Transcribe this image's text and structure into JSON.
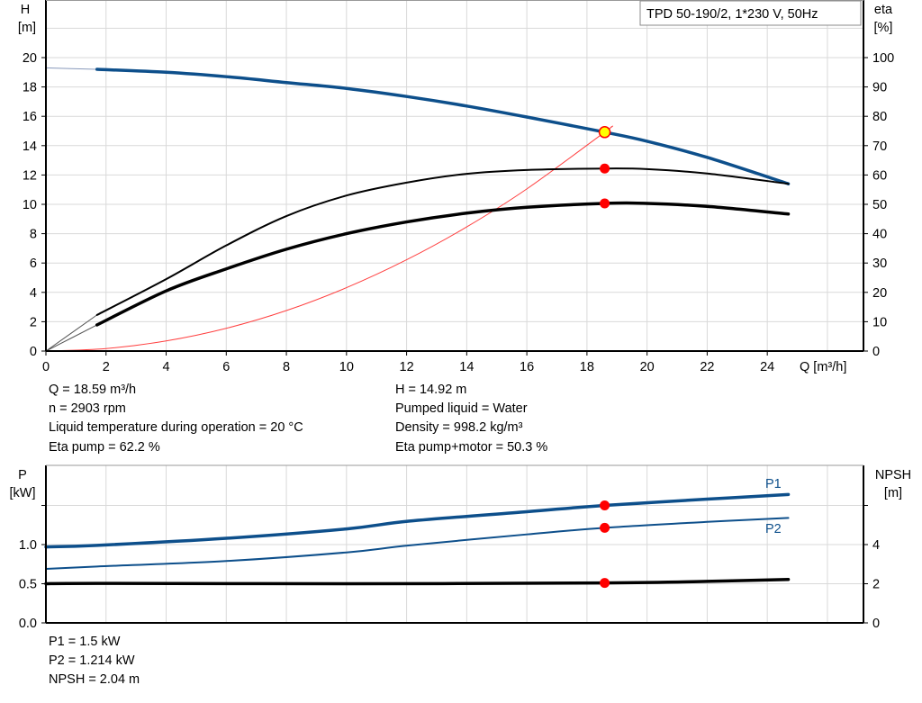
{
  "chart_data": [
    {
      "type": "line",
      "title": "TPD 50-190/2, 1*230 V, 50Hz",
      "xlabel": "Q [m³/h]",
      "ylabel_left": "H",
      "ylabel_left_unit": "[m]",
      "ylabel_right": "eta",
      "ylabel_right_unit": "[%]",
      "xlim": [
        0,
        27.2
      ],
      "ylim_left": [
        0,
        24
      ],
      "ylim_right": [
        0,
        120
      ],
      "x_ticks": [
        "0",
        "2",
        "4",
        "6",
        "8",
        "10",
        "12",
        "14",
        "16",
        "18",
        "20",
        "22",
        "24"
      ],
      "y_left_ticks": [
        "0",
        "2",
        "4",
        "6",
        "8",
        "10",
        "12",
        "14",
        "16",
        "18",
        "20"
      ],
      "y_right_ticks": [
        "0",
        "10",
        "20",
        "30",
        "40",
        "50",
        "60",
        "70",
        "80",
        "90",
        "100"
      ],
      "grid": true,
      "series": [
        {
          "key": "H",
          "axis": "left",
          "color": "#0d4f8b",
          "x": [
            1.7,
            4,
            6,
            8,
            10,
            12,
            14,
            16,
            18.59,
            20,
            22,
            24.7
          ],
          "y": [
            19.2,
            19.0,
            18.7,
            18.3,
            17.9,
            17.35,
            16.7,
            15.95,
            14.92,
            14.3,
            13.2,
            11.4
          ],
          "extrapolated": {
            "x": [
              0,
              1.7
            ],
            "y": [
              19.3,
              19.2
            ]
          }
        },
        {
          "key": "eta_pump",
          "axis": "right",
          "color": "#000000",
          "x": [
            1.7,
            4,
            6,
            8,
            10,
            12,
            14,
            16,
            18.59,
            20,
            22,
            24.7
          ],
          "y": [
            12.3,
            24.5,
            36,
            46,
            53,
            57.4,
            60.4,
            61.7,
            62.2,
            62,
            60.5,
            57
          ]
        },
        {
          "key": "eta_pump_motor",
          "axis": "right",
          "color": "#000000",
          "x": [
            1.7,
            4,
            6,
            8,
            10,
            12,
            14,
            16,
            18.59,
            20,
            22,
            24.7
          ],
          "y": [
            8.9,
            20.5,
            28,
            34.7,
            40,
            44,
            47,
            49,
            50.3,
            50.3,
            49.3,
            46.7
          ]
        },
        {
          "key": "system_curve",
          "axis": "left",
          "color": "#ff4040",
          "formula_points": {
            "x": [
              0,
              2,
              4,
              6,
              8,
              10,
              12,
              14,
              16,
              18.59,
              18.8
            ],
            "y": [
              0,
              0.17,
              0.69,
              1.55,
              2.76,
              4.32,
              6.22,
              8.46,
              11.05,
              14.92,
              15.26
            ]
          }
        }
      ],
      "operating_point": {
        "Q": 18.59,
        "H": 14.92,
        "eta_pump": 62.2,
        "eta_pump_motor": 50.3
      }
    },
    {
      "type": "line",
      "ylabel_left": "P",
      "ylabel_left_unit": "[kW]",
      "ylabel_right": "NPSH",
      "ylabel_right_unit": "[m]",
      "xlim": [
        0,
        27.2
      ],
      "ylim_left": [
        0,
        2.0
      ],
      "ylim_right": [
        0,
        8
      ],
      "y_left_ticks": [
        "0.0",
        "0.5",
        "1.0"
      ],
      "y_right_ticks": [
        "0",
        "2",
        "4"
      ],
      "grid": true,
      "series": [
        {
          "name": "P1",
          "axis": "left",
          "color": "#0d4f8b",
          "x": [
            0,
            1.7,
            6,
            10,
            12.1,
            16,
            18.59,
            22,
            24.7
          ],
          "y": [
            0.97,
            0.99,
            1.08,
            1.2,
            1.3,
            1.42,
            1.5,
            1.58,
            1.64
          ]
        },
        {
          "name": "P2",
          "axis": "left",
          "color": "#0d4f8b",
          "x": [
            0,
            1.7,
            6,
            10,
            12.1,
            16,
            18.59,
            22,
            24.7
          ],
          "y": [
            0.69,
            0.72,
            0.79,
            0.9,
            0.99,
            1.13,
            1.214,
            1.29,
            1.34
          ]
        },
        {
          "key": "NPSH",
          "axis": "right",
          "color": "#000000",
          "x": [
            0,
            1.7,
            10,
            18.59,
            22,
            24.7
          ],
          "y": [
            2.0,
            2.02,
            2.0,
            2.04,
            2.12,
            2.22
          ]
        }
      ],
      "operating_point": {
        "Q": 18.59,
        "P1": 1.5,
        "P2": 1.214,
        "NPSH": 2.04
      }
    }
  ],
  "info_top": {
    "left": [
      "Q = 18.59 m³/h",
      "n = 2903 rpm",
      "Liquid temperature during operation = 20 °C",
      "Eta pump = 62.2 %"
    ],
    "right": [
      "H = 14.92 m",
      "Pumped liquid = Water",
      "Density = 998.2 kg/m³",
      "Eta pump+motor = 50.3 %"
    ]
  },
  "info_bottom": [
    "P1 = 1.5 kW",
    "P2 = 1.214 kW",
    "NPSH = 2.04 m"
  ],
  "colors": {
    "curve_blue": "#0d4f8b",
    "marker_red": "#ff0000",
    "marker_yellow": "#ffff00",
    "system_curve": "#ff4040",
    "grid": "#d9d9d9"
  }
}
